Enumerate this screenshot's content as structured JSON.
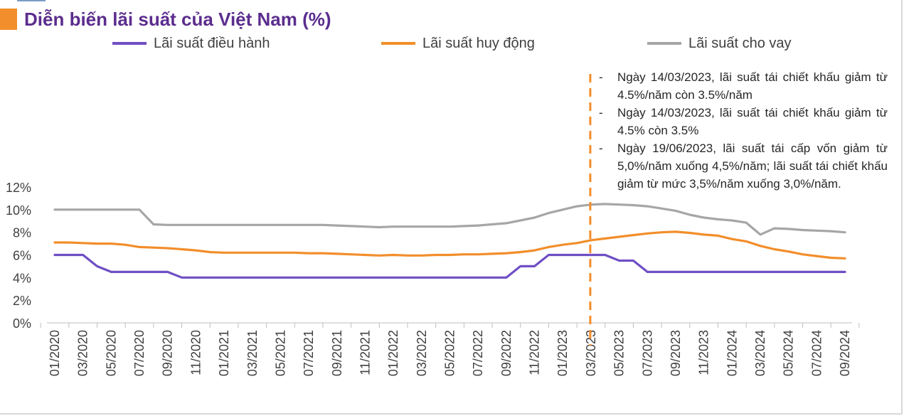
{
  "title": "Diễn biến lãi suất của Việt Nam (%)",
  "colors": {
    "title_marker": "#f28e2b",
    "title_text": "#5b2d8e",
    "accent": "#7a9cc6",
    "annotation_line": "#f28e2b"
  },
  "legend": [
    {
      "label": "Lãi suất điều hành",
      "color": "#6f4fc4"
    },
    {
      "label": "Lãi suất huy động",
      "color": "#f28e2b"
    },
    {
      "label": "Lãi suất cho vay",
      "color": "#a6a6a6"
    }
  ],
  "annotation": {
    "notes": [
      "Ngày 14/03/2023, lãi suất tái chiết khấu giảm từ 4.5%/năm còn 3.5%/năm",
      "Ngày 14/03/2023, lãi suất tái chiết khấu giảm từ 4.5% còn 3.5%",
      "Ngày 19/06/2023, lãi suất tái cấp vốn giảm từ 5,0%/năm xuống 4,5%/năm; lãi suất tái chiết khấu giảm từ mức 3,5%/năm xuống 3,0%/năm."
    ],
    "marker_date": "03/2023"
  },
  "chart_data": {
    "type": "line",
    "title": "Diễn biến lãi suất của Việt Nam (%)",
    "xlabel": "",
    "ylabel": "",
    "ylim": [
      0,
      12
    ],
    "yticks": [
      "0%",
      "2%",
      "4%",
      "6%",
      "8%",
      "10%",
      "12%"
    ],
    "x_tick_labels": [
      "01/2020",
      "03/2020",
      "05/2020",
      "07/2020",
      "09/2020",
      "11/2020",
      "01/2021",
      "03/2021",
      "05/2021",
      "07/2021",
      "09/2021",
      "11/2021",
      "01/2022",
      "03/2022",
      "05/2022",
      "07/2022",
      "09/2022",
      "11/2022",
      "01/2023",
      "03/2023",
      "05/2023",
      "07/2023",
      "09/2023",
      "11/2023",
      "01/2024",
      "03/2024",
      "05/2024",
      "07/2024",
      "09/2024"
    ],
    "x": [
      "01/2020",
      "02/2020",
      "03/2020",
      "04/2020",
      "05/2020",
      "06/2020",
      "07/2020",
      "08/2020",
      "09/2020",
      "10/2020",
      "11/2020",
      "12/2020",
      "01/2021",
      "02/2021",
      "03/2021",
      "04/2021",
      "05/2021",
      "06/2021",
      "07/2021",
      "08/2021",
      "09/2021",
      "10/2021",
      "11/2021",
      "12/2021",
      "01/2022",
      "02/2022",
      "03/2022",
      "04/2022",
      "05/2022",
      "06/2022",
      "07/2022",
      "08/2022",
      "09/2022",
      "10/2022",
      "11/2022",
      "12/2022",
      "01/2023",
      "02/2023",
      "03/2023",
      "04/2023",
      "05/2023",
      "06/2023",
      "07/2023",
      "08/2023",
      "09/2023",
      "10/2023",
      "11/2023",
      "12/2023",
      "01/2024",
      "02/2024",
      "03/2024",
      "04/2024",
      "05/2024",
      "06/2024",
      "07/2024",
      "08/2024",
      "09/2024"
    ],
    "series": [
      {
        "name": "Lãi suất điều hành",
        "color": "#6f4fc4",
        "values": [
          6,
          6,
          6,
          5,
          4.5,
          4.5,
          4.5,
          4.5,
          4.5,
          4,
          4,
          4,
          4,
          4,
          4,
          4,
          4,
          4,
          4,
          4,
          4,
          4,
          4,
          4,
          4,
          4,
          4,
          4,
          4,
          4,
          4,
          4,
          4,
          5,
          5,
          6,
          6,
          6,
          6,
          6,
          5.5,
          5.5,
          4.5,
          4.5,
          4.5,
          4.5,
          4.5,
          4.5,
          4.5,
          4.5,
          4.5,
          4.5,
          4.5,
          4.5,
          4.5,
          4.5,
          4.5
        ]
      },
      {
        "name": "Lãi suất huy động",
        "color": "#f28e2b",
        "values": [
          7.1,
          7.1,
          7.05,
          7.0,
          7.0,
          6.9,
          6.7,
          6.65,
          6.6,
          6.5,
          6.4,
          6.25,
          6.2,
          6.2,
          6.2,
          6.2,
          6.2,
          6.2,
          6.15,
          6.15,
          6.1,
          6.05,
          6.0,
          5.95,
          6.0,
          5.95,
          5.95,
          6.0,
          6.0,
          6.05,
          6.05,
          6.1,
          6.15,
          6.25,
          6.4,
          6.7,
          6.9,
          7.05,
          7.3,
          7.45,
          7.6,
          7.75,
          7.9,
          8.0,
          8.05,
          7.95,
          7.8,
          7.7,
          7.4,
          7.2,
          6.8,
          6.5,
          6.3,
          6.05,
          5.9,
          5.75,
          5.7
        ]
      },
      {
        "name": "Lãi suất cho vay",
        "color": "#a6a6a6",
        "values": [
          10,
          10,
          10,
          10,
          10,
          10,
          10,
          8.7,
          8.65,
          8.65,
          8.65,
          8.65,
          8.65,
          8.65,
          8.65,
          8.65,
          8.65,
          8.65,
          8.65,
          8.65,
          8.6,
          8.55,
          8.5,
          8.45,
          8.5,
          8.5,
          8.5,
          8.5,
          8.5,
          8.55,
          8.6,
          8.7,
          8.8,
          9.05,
          9.3,
          9.7,
          10.0,
          10.3,
          10.45,
          10.5,
          10.45,
          10.4,
          10.3,
          10.1,
          9.9,
          9.55,
          9.3,
          9.15,
          9.05,
          8.85,
          7.8,
          8.35,
          8.3,
          8.2,
          8.15,
          8.1,
          8.0
        ]
      }
    ],
    "vertical_marker": "03/2023",
    "grid": false,
    "legend_position": "top"
  }
}
